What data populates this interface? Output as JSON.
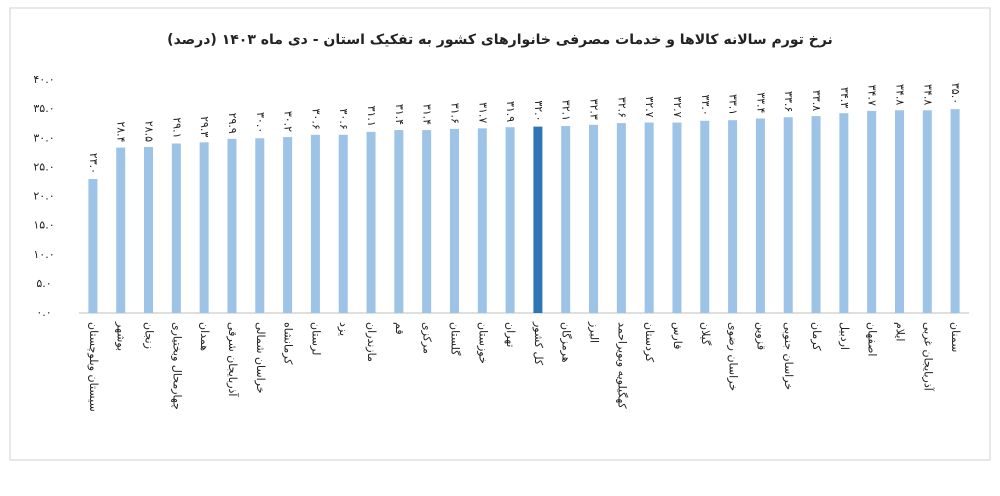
{
  "chart_data": {
    "type": "bar",
    "title": "نرخ تورم سالانه کالاها و خدمات مصرفی خانوارهای کشور به تفکیک استان - دی ماه ۱۴۰۳ (درصد)",
    "categories": [
      "سیستان وبلوچستان",
      "بوشهر",
      "زنجان",
      "چهارمحال وبختیاری",
      "همدان",
      "آذربایجان شرقی",
      "خراسان شمالی",
      "کرمانشاه",
      "لرستان",
      "یزد",
      "مازندران",
      "قم",
      "مرکزی",
      "گلستان",
      "خوزستان",
      "تهران",
      "کل کشور",
      "هرمزگان",
      "البرز",
      "کهگیلویه وبویراحمد",
      "کردستان",
      "فارس",
      "گیلان",
      "خراسان رضوی",
      "قزوین",
      "خراسان جنوبی",
      "کرمان",
      "اردبیل",
      "اصفهان",
      "ایلام",
      "آذربایجان غربی",
      "سمنان"
    ],
    "values": [
      23.0,
      28.4,
      28.5,
      29.1,
      29.3,
      29.9,
      30.0,
      30.2,
      30.6,
      30.6,
      31.1,
      31.4,
      31.4,
      31.6,
      31.7,
      31.9,
      32.0,
      32.1,
      32.3,
      32.6,
      32.7,
      32.7,
      33.0,
      33.1,
      33.4,
      33.6,
      33.8,
      34.3,
      34.7,
      34.8,
      34.8,
      35.0
    ],
    "value_labels": [
      "۲۳.۰",
      "۲۸.۴",
      "۲۸.۵",
      "۲۹.۱",
      "۲۹.۳",
      "۲۹.۹",
      "۳۰.۰",
      "۳۰.۲",
      "۳۰.۶",
      "۳۰.۶",
      "۳۱.۱",
      "۳۱.۴",
      "۳۱.۴",
      "۳۱.۶",
      "۳۱.۷",
      "۳۱.۹",
      "۳۲.۰",
      "۳۲.۱",
      "۳۲.۳",
      "۳۲.۶",
      "۳۲.۷",
      "۳۲.۷",
      "۳۳.۰",
      "۳۳.۱",
      "۳۳.۴",
      "۳۳.۶",
      "۳۳.۸",
      "۳۴.۳",
      "۳۴.۷",
      "۳۴.۸",
      "۳۴.۸",
      "۳۵.۰"
    ],
    "colors": [
      "#9dc3e6",
      "#9dc3e6",
      "#9dc3e6",
      "#9dc3e6",
      "#9dc3e6",
      "#9dc3e6",
      "#9dc3e6",
      "#9dc3e6",
      "#9dc3e6",
      "#9dc3e6",
      "#9dc3e6",
      "#9dc3e6",
      "#9dc3e6",
      "#9dc3e6",
      "#9dc3e6",
      "#9dc3e6",
      "#2e75b6",
      "#9dc3e6",
      "#9dc3e6",
      "#9dc3e6",
      "#9dc3e6",
      "#9dc3e6",
      "#9dc3e6",
      "#9dc3e6",
      "#9dc3e6",
      "#9dc3e6",
      "#9dc3e6",
      "#9dc3e6",
      "#9dc3e6",
      "#9dc3e6",
      "#9dc3e6",
      "#9dc3e6"
    ],
    "ylim": [
      0,
      40
    ],
    "yticks": [
      {
        "value": 0,
        "label": "۰.۰"
      },
      {
        "value": 5,
        "label": "۵.۰"
      },
      {
        "value": 10,
        "label": "۱۰.۰"
      },
      {
        "value": 15,
        "label": "۱۵.۰"
      },
      {
        "value": 20,
        "label": "۲۰.۰"
      },
      {
        "value": 25,
        "label": "۲۵.۰"
      },
      {
        "value": 30,
        "label": "۳۰.۰"
      },
      {
        "value": 35,
        "label": "۳۵.۰"
      },
      {
        "value": 40,
        "label": "۴۰.۰"
      }
    ],
    "grid": false
  }
}
